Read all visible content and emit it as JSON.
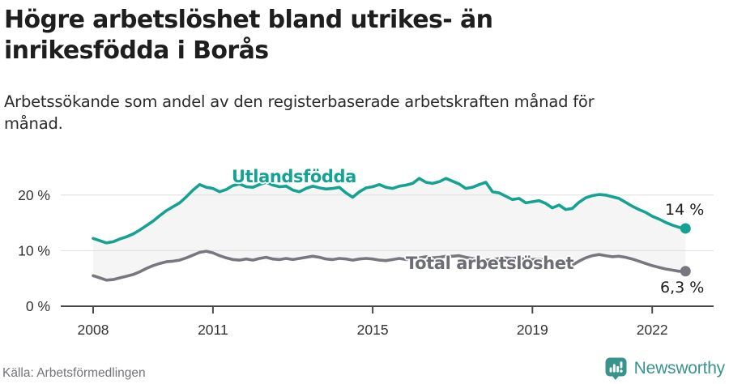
{
  "header": {
    "title_lines": [
      "Högre arbetslöshet bland utrikes- än",
      "inrikesfödda i Borås"
    ],
    "subtitle_lines": [
      "Arbetssökande som andel av den registerbaserade arbetskraften månad för",
      "månad."
    ]
  },
  "footer": {
    "source": "Källa: Arbetsförmedlingen",
    "brand": "Newsworthy",
    "brand_icon": "bar-chart-speech-bubble-icon"
  },
  "colors": {
    "accent_teal": "#14a292",
    "line_gray": "#77777f",
    "fill_between": "#f5f5f5",
    "grid": "#dedede",
    "axis": "#4a4a4a",
    "title": "#1e1e1e",
    "tick_label": "#333333",
    "end_label": "#1c1c1c",
    "source_text": "#73737b",
    "brand": "#3a948e"
  },
  "chart_data": {
    "type": "line",
    "title": "Högre arbetslöshet bland utrikes- än inrikesfödda i Borås",
    "subtitle": "Arbetssökande som andel av den registerbaserade arbetskraften månad för månad.",
    "x_start": 2008,
    "x_step_months": 2,
    "x_ticks": [
      2008,
      2011,
      2015,
      2019,
      2022
    ],
    "y_ticks": [
      {
        "value": 0,
        "label": "0 %"
      },
      {
        "value": 10,
        "label": "10 %"
      },
      {
        "value": 20,
        "label": "20 %"
      }
    ],
    "ylim": [
      0,
      25
    ],
    "grid": "horizontal",
    "fill_between": "#f5f5f5",
    "legend_position": "inline-labels",
    "series": [
      {
        "name": "Utlandsfödda",
        "color": "#14a292",
        "end_label": "14 %",
        "end_value": 14.0,
        "values": [
          12.2,
          11.8,
          11.4,
          11.6,
          12.1,
          12.5,
          13.0,
          13.7,
          14.5,
          15.3,
          16.3,
          17.2,
          17.9,
          18.6,
          19.7,
          20.9,
          21.9,
          21.4,
          21.2,
          20.6,
          21.0,
          21.7,
          22.0,
          21.5,
          21.4,
          21.9,
          22.3,
          21.8,
          21.5,
          21.6,
          20.9,
          20.6,
          21.2,
          21.6,
          21.3,
          21.1,
          21.2,
          21.4,
          20.4,
          19.6,
          20.6,
          21.3,
          21.5,
          21.9,
          21.4,
          21.2,
          21.6,
          21.8,
          22.1,
          23.0,
          22.3,
          22.1,
          22.4,
          23.0,
          22.5,
          22.0,
          21.2,
          21.4,
          21.9,
          22.3,
          20.6,
          20.4,
          19.8,
          19.2,
          19.4,
          18.6,
          18.8,
          19.0,
          18.5,
          17.7,
          18.2,
          17.4,
          17.6,
          18.7,
          19.5,
          19.9,
          20.1,
          20.0,
          19.7,
          19.4,
          18.7,
          18.0,
          17.4,
          16.9,
          16.2,
          15.7,
          15.1,
          14.6,
          14.2,
          14.0
        ]
      },
      {
        "name": "Total arbetslöshet",
        "color": "#77777f",
        "end_label": "6,3 %",
        "end_value": 6.3,
        "values": [
          5.5,
          5.1,
          4.7,
          4.8,
          5.1,
          5.4,
          5.7,
          6.2,
          6.8,
          7.3,
          7.7,
          8.0,
          8.1,
          8.3,
          8.7,
          9.2,
          9.7,
          9.9,
          9.6,
          9.1,
          8.7,
          8.4,
          8.3,
          8.5,
          8.3,
          8.6,
          8.8,
          8.5,
          8.4,
          8.6,
          8.4,
          8.6,
          8.8,
          9.0,
          8.8,
          8.5,
          8.4,
          8.6,
          8.5,
          8.3,
          8.5,
          8.6,
          8.5,
          8.3,
          8.2,
          8.4,
          8.6,
          8.4,
          8.5,
          8.7,
          8.9,
          8.7,
          8.8,
          9.0,
          9.0,
          9.1,
          8.8,
          8.6,
          8.4,
          8.3,
          8.4,
          8.6,
          8.7,
          8.6,
          8.7,
          8.4,
          8.4,
          8.5,
          8.2,
          7.9,
          7.6,
          7.3,
          7.4,
          8.1,
          8.7,
          9.1,
          9.3,
          9.1,
          8.9,
          9.0,
          8.8,
          8.5,
          8.1,
          7.7,
          7.3,
          7.0,
          6.7,
          6.5,
          6.3,
          6.3
        ]
      }
    ]
  }
}
